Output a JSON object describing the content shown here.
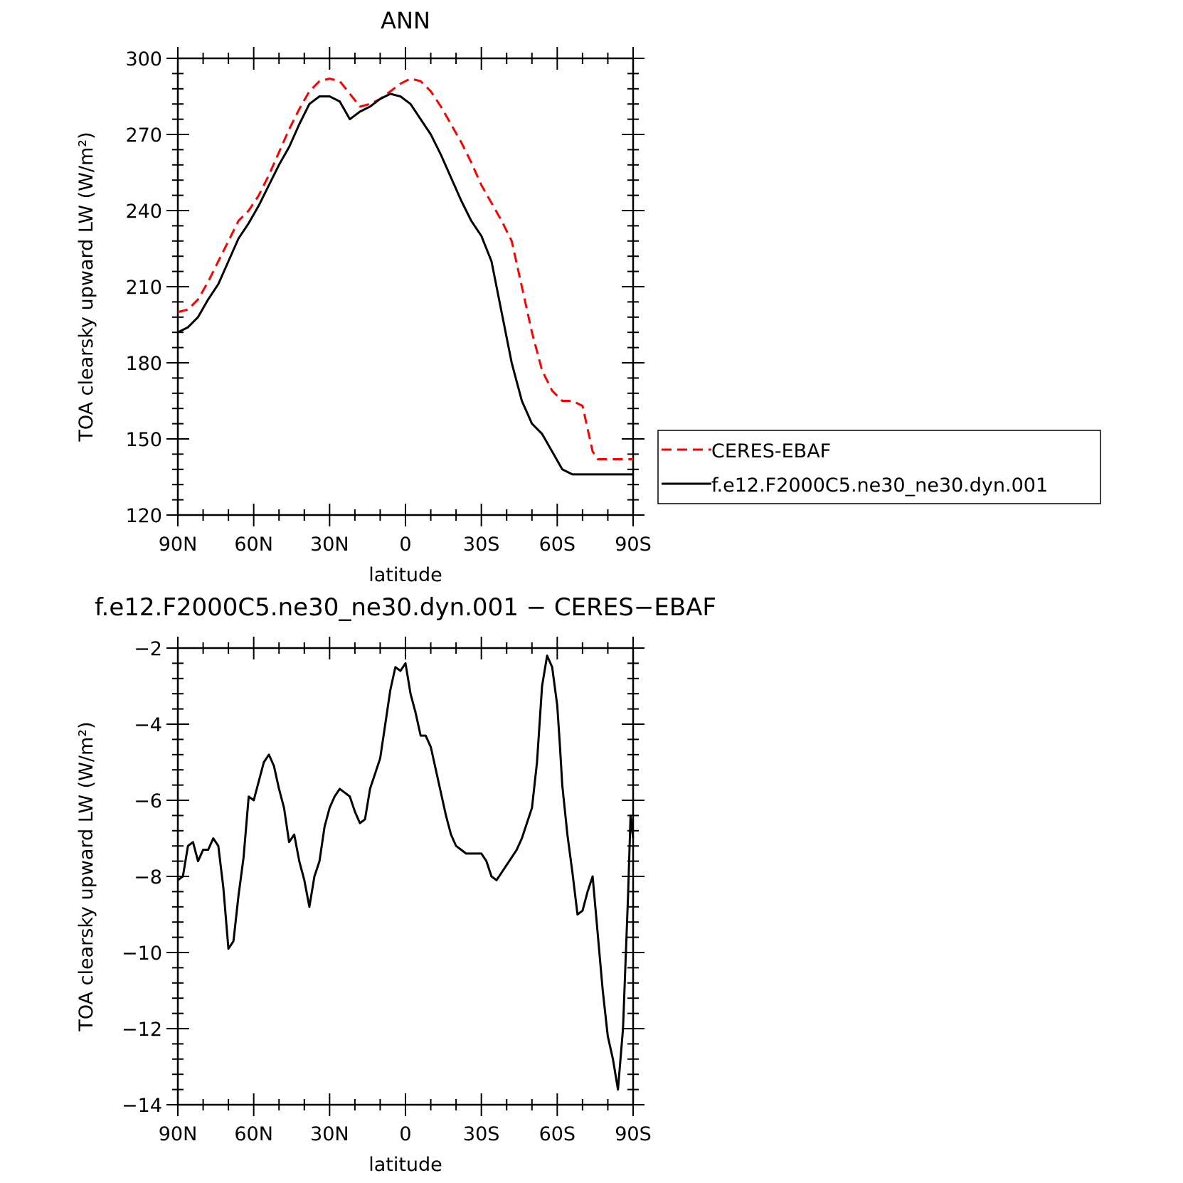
{
  "chart_data": [
    {
      "type": "line",
      "title": "ANN",
      "xlabel": "latitude",
      "ylabel": "TOA clearsky upward LW (W/m²)",
      "xlim": [
        90,
        -90
      ],
      "x_tick_values": [
        90,
        60,
        30,
        0,
        -30,
        -60,
        -90
      ],
      "x_tick_labels": [
        "90N",
        "60N",
        "30N",
        "0",
        "30S",
        "60S",
        "90S"
      ],
      "ylim": [
        120,
        300
      ],
      "y_ticks": [
        120,
        150,
        180,
        210,
        240,
        270,
        300
      ],
      "y_tick_labels": [
        "120",
        "150",
        "180",
        "210",
        "240",
        "270",
        "300"
      ],
      "legend_placement": "right",
      "series": [
        {
          "name": "CERES-EBAF",
          "color": "#ff0000",
          "dash": "dashed",
          "x": [
            90,
            86,
            82,
            78,
            74,
            70,
            66,
            62,
            58,
            54,
            50,
            46,
            42,
            38,
            34,
            30,
            26,
            22,
            18,
            14,
            10,
            6,
            2,
            -2,
            -6,
            -10,
            -14,
            -18,
            -22,
            -26,
            -30,
            -34,
            -38,
            -42,
            -46,
            -50,
            -54,
            -58,
            -62,
            -66,
            -70,
            -74,
            -76,
            -78,
            -80,
            -82,
            -84,
            -86,
            -88,
            -90
          ],
          "y": [
            200,
            201,
            205,
            212,
            220,
            228,
            236,
            240,
            246,
            254,
            263,
            272,
            280,
            287,
            291,
            292,
            291,
            286,
            281,
            282,
            284,
            287,
            290,
            292,
            291,
            287,
            281,
            274,
            267,
            259,
            250,
            243,
            236,
            228,
            210,
            192,
            177,
            169,
            165,
            165,
            163,
            145,
            142,
            142,
            142,
            142,
            142,
            142,
            142,
            142
          ]
        },
        {
          "name": "f.e12.F2000C5.ne30_ne30.dyn.001",
          "color": "#000000",
          "dash": "solid",
          "x": [
            90,
            86,
            82,
            78,
            74,
            70,
            66,
            62,
            58,
            54,
            50,
            46,
            42,
            38,
            34,
            30,
            26,
            22,
            18,
            14,
            10,
            6,
            2,
            -2,
            -6,
            -10,
            -14,
            -18,
            -22,
            -26,
            -30,
            -34,
            -38,
            -42,
            -46,
            -50,
            -54,
            -58,
            -62,
            -66,
            -70,
            -74,
            -76,
            -78,
            -80,
            -82,
            -84,
            -86,
            -88,
            -90
          ],
          "y": [
            192,
            194,
            198,
            205,
            211,
            220,
            229,
            235,
            242,
            250,
            258,
            265,
            274,
            282,
            285,
            285,
            283,
            276,
            279,
            281,
            284,
            286,
            285,
            282,
            276,
            270,
            262,
            253,
            244,
            236,
            230,
            220,
            200,
            180,
            165,
            156,
            152,
            145,
            138,
            136,
            136,
            136,
            136,
            136,
            136,
            136,
            136,
            136,
            136,
            136
          ]
        }
      ]
    },
    {
      "type": "line",
      "title": "f.e12.F2000C5.ne30_ne30.dyn.001 − CERES−EBAF",
      "xlabel": "latitude",
      "ylabel": "TOA clearsky upward LW (W/m²)",
      "xlim": [
        90,
        -90
      ],
      "x_tick_values": [
        90,
        60,
        30,
        0,
        -30,
        -60,
        -90
      ],
      "x_tick_labels": [
        "90N",
        "60N",
        "30N",
        "0",
        "30S",
        "60S",
        "90S"
      ],
      "ylim": [
        -14,
        -2
      ],
      "y_ticks": [
        -14,
        -12,
        -10,
        -8,
        -6,
        -4,
        -2
      ],
      "y_tick_labels": [
        "−14",
        "−12",
        "−10",
        "−8",
        "−6",
        "−4",
        "−2"
      ],
      "series": [
        {
          "color": "#000000",
          "dash": "solid",
          "x": [
            90,
            88,
            86,
            84,
            82,
            80,
            78,
            76,
            74,
            72,
            70,
            68,
            66,
            64,
            62,
            60,
            58,
            56,
            54,
            52,
            50,
            48,
            46,
            44,
            42,
            40,
            38,
            36,
            34,
            32,
            30,
            28,
            26,
            24,
            22,
            20,
            18,
            16,
            14,
            12,
            10,
            8,
            6,
            4,
            2,
            0,
            -2,
            -4,
            -6,
            -8,
            -10,
            -12,
            -14,
            -16,
            -18,
            -20,
            -22,
            -24,
            -26,
            -28,
            -30,
            -32,
            -34,
            -36,
            -38,
            -40,
            -42,
            -44,
            -46,
            -48,
            -50,
            -52,
            -54,
            -56,
            -58,
            -60,
            -61,
            -62,
            -64,
            -66,
            -68,
            -70,
            -72,
            -74,
            -76,
            -78,
            -80,
            -82,
            -84,
            -86,
            -88,
            -89,
            -90
          ],
          "y": [
            -8.1,
            -8.0,
            -7.2,
            -7.1,
            -7.6,
            -7.3,
            -7.3,
            -7.0,
            -7.2,
            -8.3,
            -9.9,
            -9.7,
            -8.5,
            -7.5,
            -5.9,
            -6.0,
            -5.5,
            -5.0,
            -4.8,
            -5.1,
            -5.7,
            -6.2,
            -7.1,
            -6.9,
            -7.6,
            -8.1,
            -8.8,
            -8.0,
            -7.6,
            -6.7,
            -6.2,
            -5.9,
            -5.7,
            -5.8,
            -5.9,
            -6.3,
            -6.6,
            -6.5,
            -5.7,
            -5.3,
            -4.9,
            -4.0,
            -3.1,
            -2.5,
            -2.6,
            -2.4,
            -3.2,
            -3.7,
            -4.3,
            -4.3,
            -4.6,
            -5.2,
            -5.8,
            -6.4,
            -6.9,
            -7.2,
            -7.3,
            -7.4,
            -7.4,
            -7.4,
            -7.4,
            -7.6,
            -8.0,
            -8.1,
            -7.9,
            -7.7,
            -7.5,
            -7.3,
            -7.0,
            -6.6,
            -6.2,
            -5.0,
            -3.0,
            -2.2,
            -2.5,
            -3.5,
            -4.5,
            -5.6,
            -6.9,
            -7.9,
            -9.0,
            -8.9,
            -8.4,
            -8.0,
            -9.5,
            -11.0,
            -12.2,
            -12.8,
            -13.6,
            -12.0,
            -8.5,
            -6.4,
            -7.0
          ]
        }
      ]
    }
  ]
}
